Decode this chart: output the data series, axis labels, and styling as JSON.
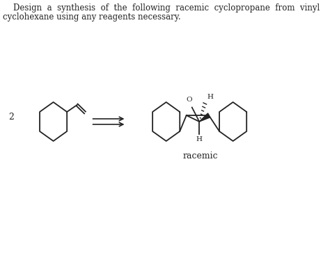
{
  "title_line1": "    Design  a  synthesis  of  the  following  racemic  cyclopropane  from  vinyl",
  "title_line2": "cyclohexane using any reagents necessary.",
  "label_2": "2",
  "label_racemic": "racemic",
  "label_O": "O",
  "label_H_top": "H",
  "label_H_bot": "H",
  "bg_color": "#ffffff",
  "line_color": "#222222",
  "text_color": "#222222",
  "title_fontsize": 8.5,
  "label_fontsize": 9,
  "chem_fontsize": 7.5
}
